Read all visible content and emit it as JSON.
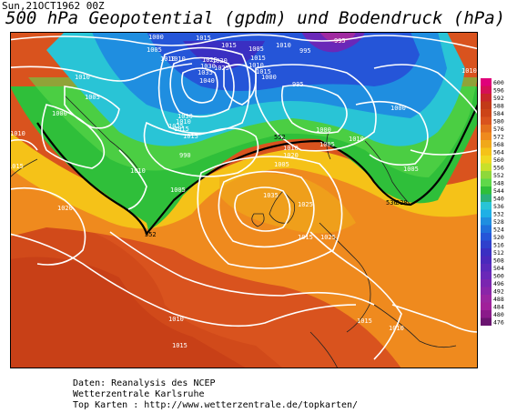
{
  "header": {
    "date": "Sun,21OCT1962 00Z",
    "title": "500 hPa Geopotential (gpdm) und Bodendruck (hPa)"
  },
  "isobar_labels": [
    "1015",
    "1000",
    "1005",
    "1010",
    "1015",
    "995",
    "1010",
    "1005",
    "995",
    "1020",
    "1010",
    "1015",
    "1025",
    "1040",
    "1035",
    "1030",
    "1025",
    "1010",
    "1015",
    "1000",
    "1010",
    "1005",
    "1000",
    "995",
    "1000",
    "990",
    "1010",
    "1015",
    "1015",
    "1025",
    "1030",
    "1035",
    "1010",
    "1020",
    "1005",
    "1010",
    "1010",
    "1010",
    "1000",
    "1005",
    "1005",
    "1005",
    "1010",
    "1015",
    "1025",
    "1025",
    "1020",
    "1010",
    "1015",
    "1010",
    "1015",
    "1015"
  ],
  "contour_labels": [
    "552",
    "552",
    "536",
    "528"
  ],
  "scale": {
    "values": [
      "600",
      "596",
      "592",
      "588",
      "584",
      "580",
      "576",
      "572",
      "568",
      "564",
      "560",
      "556",
      "552",
      "548",
      "544",
      "540",
      "536",
      "532",
      "528",
      "524",
      "520",
      "516",
      "512",
      "508",
      "504",
      "500",
      "496",
      "492",
      "488",
      "484",
      "480",
      "476"
    ]
  },
  "footer": {
    "line1": "Daten: Reanalysis des NCEP",
    "line2": "Wetterzentrale Karlsruhe",
    "line3": "Top Karten :  http://www.wetterzentrale.de/topkarten/"
  }
}
